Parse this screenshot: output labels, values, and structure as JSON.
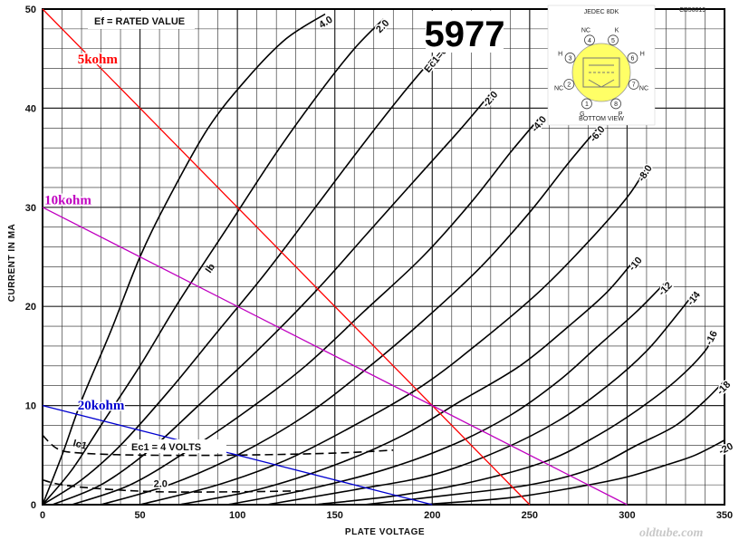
{
  "chart_data": {
    "type": "line",
    "title": "5977",
    "xlabel": "PLATE VOLTAGE",
    "ylabel": "CURRENT IN MA",
    "xlim": [
      0,
      350
    ],
    "ylim": [
      0,
      50
    ],
    "x_ticks": [
      "0",
      "50",
      "100",
      "150",
      "200",
      "250",
      "300",
      "350"
    ],
    "y_ticks": [
      "0",
      "10",
      "20",
      "30",
      "40",
      "50"
    ],
    "grid": true,
    "annotation_filament": "Ef = RATED VALUE",
    "annotation_curve_family": "Ib",
    "annotation_grid_current": "Ic1",
    "annotation_grid_current_label": "Ec1 = 4 VOLTS",
    "doc_number": "CB56019",
    "series": [
      {
        "name": "4.0",
        "points": [
          [
            0,
            0
          ],
          [
            10,
            5
          ],
          [
            20,
            10.5
          ],
          [
            35,
            17.5
          ],
          [
            50,
            25
          ],
          [
            65,
            31
          ],
          [
            85,
            38
          ],
          [
            105,
            43
          ],
          [
            125,
            47
          ],
          [
            145,
            49.5
          ]
        ]
      },
      {
        "name": "2.0",
        "points": [
          [
            0,
            0
          ],
          [
            15,
            3.5
          ],
          [
            30,
            8
          ],
          [
            50,
            14
          ],
          [
            70,
            20.5
          ],
          [
            95,
            28
          ],
          [
            120,
            35.5
          ],
          [
            140,
            41
          ],
          [
            160,
            46
          ],
          [
            175,
            49
          ]
        ]
      },
      {
        "name": "Ec1=0 VOLTS",
        "points": [
          [
            0,
            0
          ],
          [
            20,
            2.5
          ],
          [
            40,
            6
          ],
          [
            65,
            11.5
          ],
          [
            90,
            17.5
          ],
          [
            115,
            23.5
          ],
          [
            140,
            30
          ],
          [
            165,
            36.5
          ],
          [
            185,
            41.5
          ],
          [
            200,
            45
          ]
        ]
      },
      {
        "name": "-2.0",
        "points": [
          [
            5,
            0
          ],
          [
            30,
            2
          ],
          [
            55,
            5.5
          ],
          [
            80,
            10
          ],
          [
            110,
            15.5
          ],
          [
            140,
            21.5
          ],
          [
            165,
            27
          ],
          [
            190,
            32.5
          ],
          [
            215,
            38
          ],
          [
            230,
            41.5
          ]
        ]
      },
      {
        "name": "-4.0",
        "points": [
          [
            15,
            0
          ],
          [
            45,
            2
          ],
          [
            75,
            5.5
          ],
          [
            105,
            9.5
          ],
          [
            135,
            14
          ],
          [
            165,
            19.5
          ],
          [
            195,
            25
          ],
          [
            220,
            30.5
          ],
          [
            240,
            35.5
          ],
          [
            255,
            39
          ]
        ]
      },
      {
        "name": "-6.0",
        "points": [
          [
            30,
            0
          ],
          [
            65,
            2
          ],
          [
            100,
            5
          ],
          [
            135,
            9
          ],
          [
            165,
            13.5
          ],
          [
            195,
            18.5
          ],
          [
            225,
            24
          ],
          [
            250,
            29.5
          ],
          [
            270,
            34.5
          ],
          [
            285,
            38
          ]
        ]
      },
      {
        "name": "-8.0",
        "points": [
          [
            50,
            0
          ],
          [
            90,
            2
          ],
          [
            125,
            4.5
          ],
          [
            160,
            8
          ],
          [
            195,
            12
          ],
          [
            225,
            16.5
          ],
          [
            255,
            21.5
          ],
          [
            280,
            26.5
          ],
          [
            300,
            31
          ],
          [
            310,
            34
          ]
        ]
      },
      {
        "name": "-10",
        "points": [
          [
            70,
            0
          ],
          [
            110,
            1.5
          ],
          [
            150,
            4
          ],
          [
            185,
            7
          ],
          [
            215,
            10.5
          ],
          [
            245,
            14
          ],
          [
            270,
            18
          ],
          [
            290,
            21.5
          ],
          [
            305,
            25
          ]
        ]
      },
      {
        "name": "-12",
        "points": [
          [
            95,
            0
          ],
          [
            135,
            1.5
          ],
          [
            175,
            3.5
          ],
          [
            210,
            6
          ],
          [
            240,
            9
          ],
          [
            265,
            12.5
          ],
          [
            285,
            16
          ],
          [
            305,
            19.5
          ],
          [
            320,
            22.5
          ]
        ]
      },
      {
        "name": "-14",
        "points": [
          [
            115,
            0
          ],
          [
            160,
            1.5
          ],
          [
            200,
            3
          ],
          [
            235,
            5.5
          ],
          [
            265,
            8.5
          ],
          [
            290,
            12
          ],
          [
            310,
            15.5
          ],
          [
            325,
            19
          ],
          [
            335,
            21.5
          ]
        ]
      },
      {
        "name": "-16",
        "points": [
          [
            140,
            0
          ],
          [
            185,
            1
          ],
          [
            225,
            2.5
          ],
          [
            260,
            4.5
          ],
          [
            285,
            7
          ],
          [
            305,
            9.5
          ],
          [
            325,
            12.5
          ],
          [
            340,
            15.5
          ],
          [
            345,
            17.5
          ]
        ]
      },
      {
        "name": "-18",
        "points": [
          [
            165,
            0
          ],
          [
            210,
            1
          ],
          [
            250,
            2
          ],
          [
            280,
            3.5
          ],
          [
            305,
            6
          ],
          [
            325,
            8
          ],
          [
            340,
            10.5
          ],
          [
            350,
            12.5
          ]
        ]
      },
      {
        "name": "-20",
        "points": [
          [
            195,
            0
          ],
          [
            240,
            0.7
          ],
          [
            275,
            1.8
          ],
          [
            300,
            2.8
          ],
          [
            320,
            4
          ],
          [
            335,
            5
          ],
          [
            350,
            6.5
          ]
        ]
      }
    ],
    "grid_current_curves": [
      {
        "name": "4",
        "dashed": true,
        "points": [
          [
            0,
            7
          ],
          [
            8,
            5.6
          ],
          [
            20,
            5.2
          ],
          [
            50,
            5
          ],
          [
            100,
            5
          ],
          [
            150,
            5.2
          ],
          [
            180,
            5.5
          ]
        ]
      },
      {
        "name": "2.0",
        "dashed": true,
        "points": [
          [
            0,
            2.5
          ],
          [
            10,
            2
          ],
          [
            30,
            1.6
          ],
          [
            60,
            1.3
          ],
          [
            100,
            1.3
          ],
          [
            135,
            1.4
          ]
        ]
      }
    ],
    "load_lines": [
      {
        "name": "5kohm",
        "color": "#ff0000",
        "points": [
          [
            0,
            50
          ],
          [
            250,
            0
          ]
        ]
      },
      {
        "name": "10kohm",
        "color": "#c000c0",
        "points": [
          [
            0,
            30
          ],
          [
            300,
            0
          ]
        ]
      },
      {
        "name": "20kohm",
        "color": "#0000d0",
        "points": [
          [
            0,
            10
          ],
          [
            200,
            0
          ]
        ]
      }
    ]
  },
  "socket": {
    "heading": "JEDEC 8DK",
    "footer": "BOTTOM VIEW",
    "pins": [
      {
        "num": "1",
        "label": "G"
      },
      {
        "num": "2",
        "label": "NC"
      },
      {
        "num": "3",
        "label": "H"
      },
      {
        "num": "4",
        "label": "NC"
      },
      {
        "num": "5",
        "label": "K"
      },
      {
        "num": "6",
        "label": "H"
      },
      {
        "num": "7",
        "label": "NC"
      },
      {
        "num": "8",
        "label": "P"
      }
    ],
    "accent": "#ffff66"
  },
  "watermark": "oldtube.com"
}
